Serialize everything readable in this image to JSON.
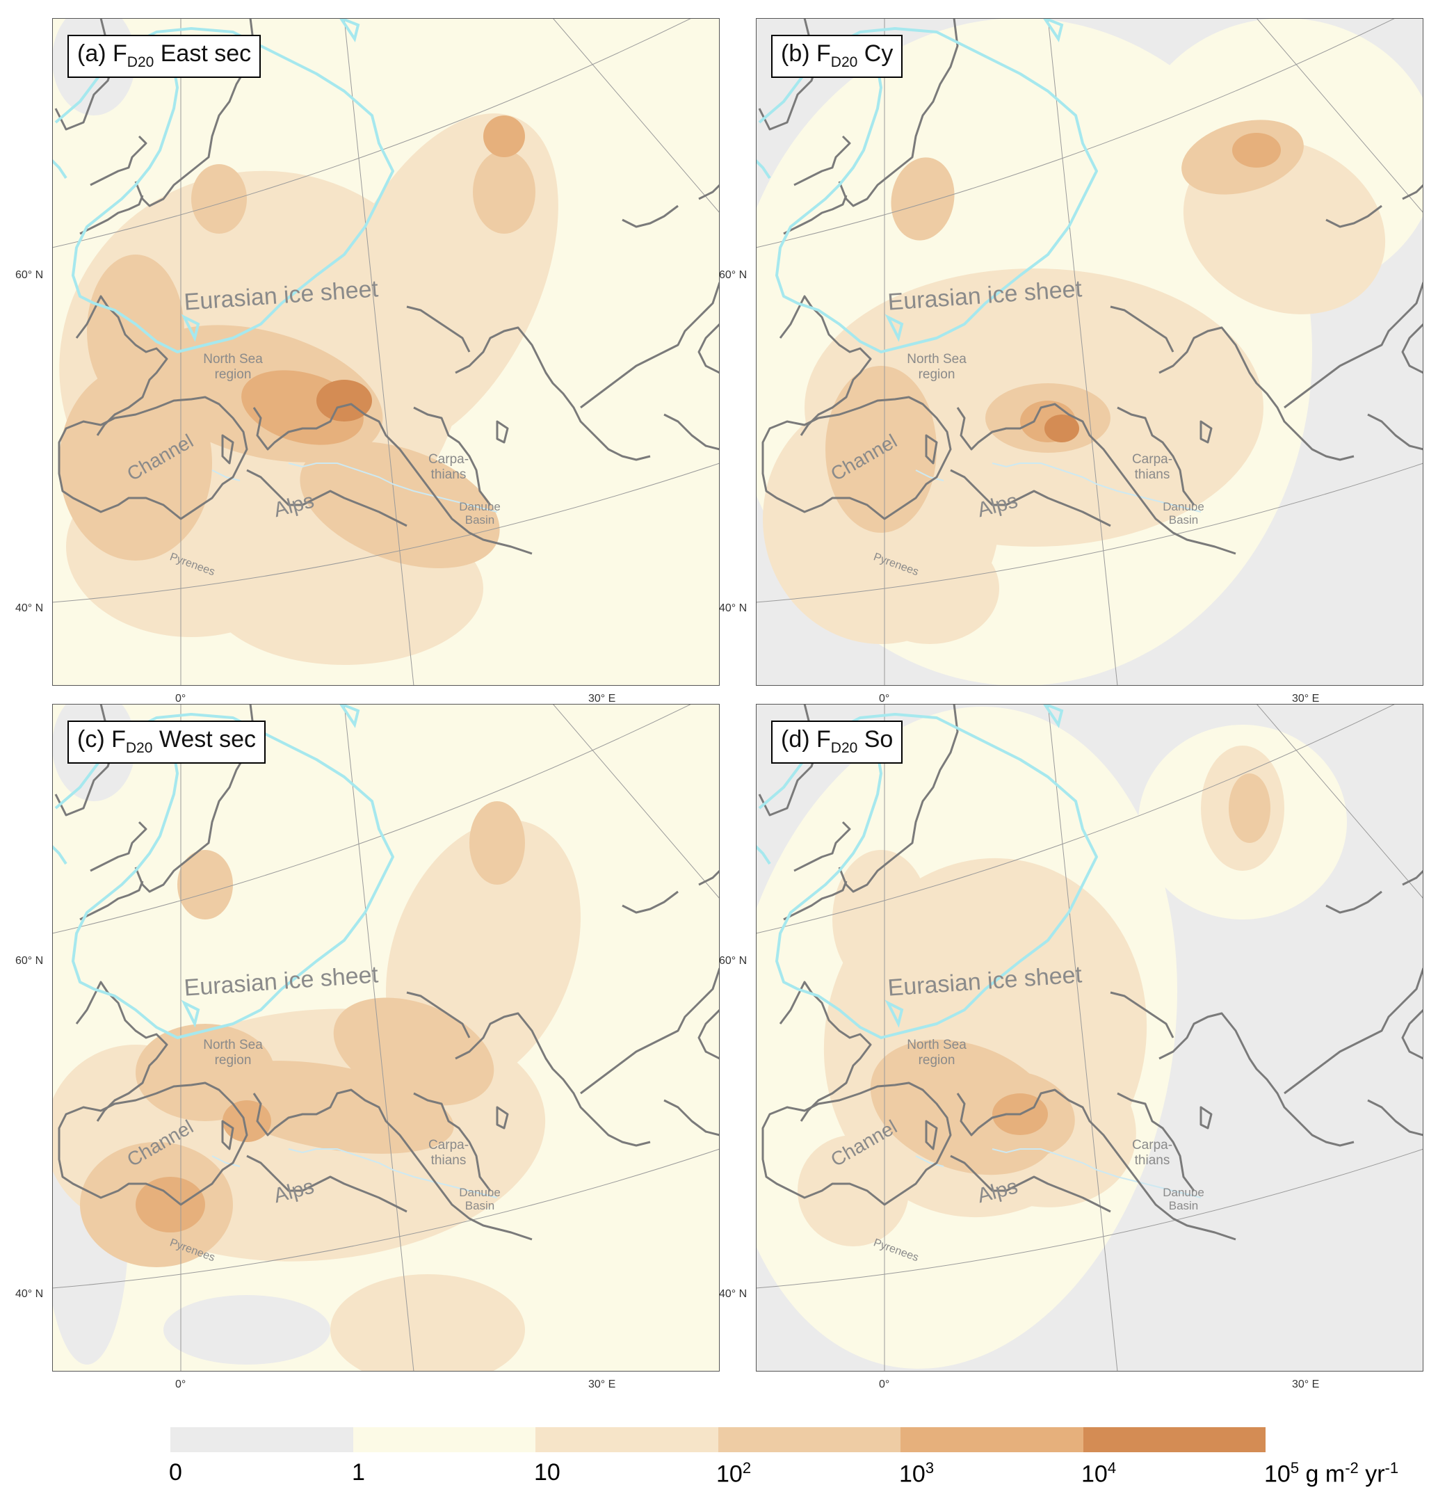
{
  "panels": [
    {
      "label": "(a) F",
      "sub": "D20",
      "suffix": " East sec",
      "variant": "a"
    },
    {
      "label": "(b) F",
      "sub": "D20",
      "suffix": " Cy",
      "variant": "b"
    },
    {
      "label": "(c) F",
      "sub": "D20",
      "suffix": " West sec",
      "variant": "c"
    },
    {
      "label": "(d) F",
      "sub": "D20",
      "suffix": " So",
      "variant": "d"
    }
  ],
  "map_labels": {
    "ice_sheet": "Eurasian ice sheet",
    "north_sea_1": "North Sea",
    "north_sea_2": "region",
    "channel": "Channel",
    "alps": "Alps",
    "pyrenees": "Pyrenees",
    "carpathians_1": "Carpa-",
    "carpathians_2": "thians",
    "danube_1": "Danube",
    "danube_2": "Basin"
  },
  "axis_ticks": {
    "lat_60": "60° N",
    "lat_40": "40° N",
    "lon_0": "0°",
    "lon_30": "30° E"
  },
  "legend": {
    "labels": [
      "0",
      "1",
      "10",
      "10",
      "10",
      "10",
      "10"
    ],
    "exponents": [
      "",
      "",
      "",
      "2",
      "3",
      "4",
      "5"
    ],
    "unit": " g m",
    "unit_exp1": "-2",
    "unit_mid": " yr",
    "unit_exp2": "-1",
    "colors": [
      "#ebebeb",
      "#fcfae6",
      "#f6e4c8",
      "#eecca4",
      "#e6b07c",
      "#d48c54"
    ]
  }
}
